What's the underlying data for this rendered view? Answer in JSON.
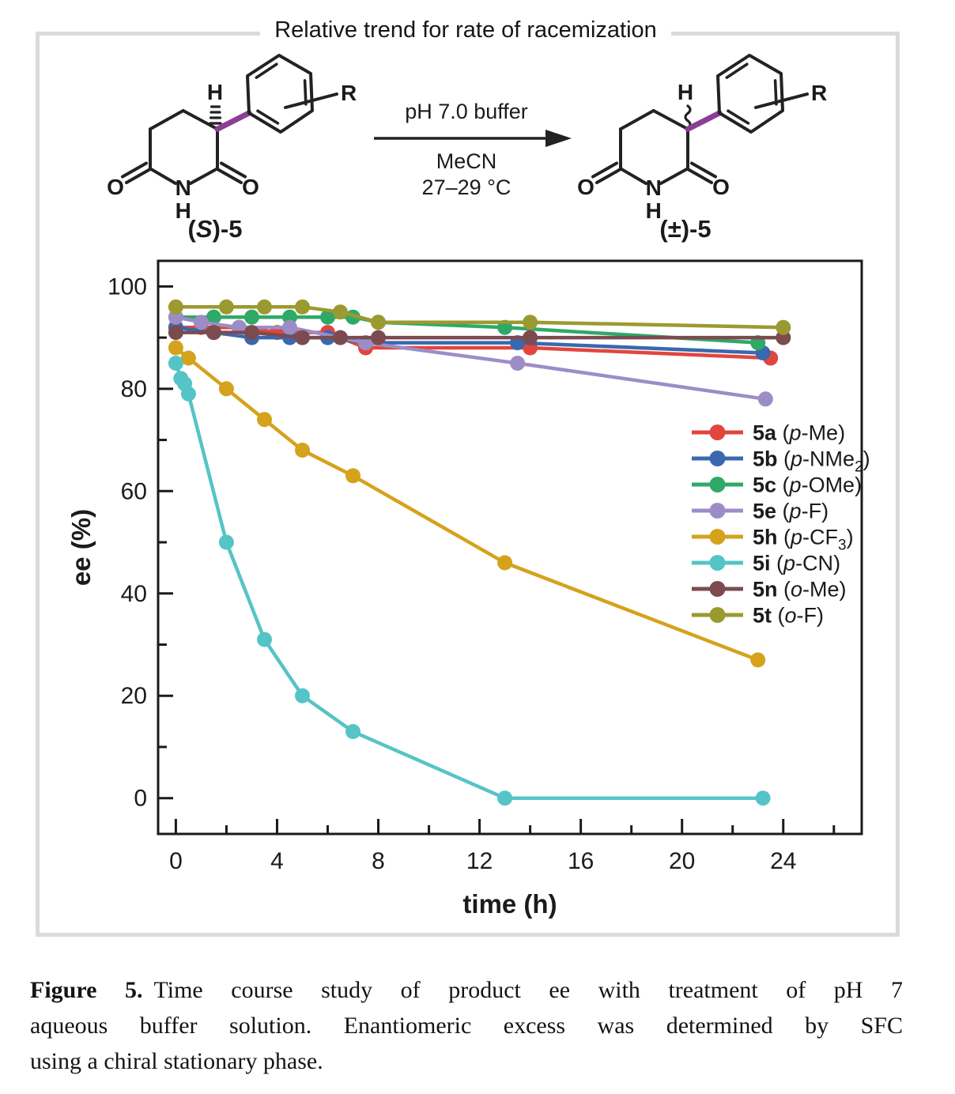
{
  "figure": {
    "title": "Relative trend for rate of racemization",
    "scheme": {
      "conditions": {
        "above_arrow": "pH 7.0 buffer",
        "below_arrow_solvent": "MeCN",
        "below_arrow_temperature": "27–29 °C"
      },
      "atoms": {
        "hydrogen": "H",
        "nitrogen": "N",
        "oxygen": "O",
        "r_group": "R"
      },
      "reactant_label": {
        "open": "(",
        "stereocenter": "S",
        "close": ")-5"
      },
      "product_label": "(±)-5",
      "stereo_bond_color": "#8c3d96"
    },
    "caption": {
      "label": "Figure 5.",
      "line1": "Time course study of product ee with treatment of pH 7",
      "line2": "aqueous buffer solution. Enantiomeric excess was determined by SFC",
      "line3": "using a chiral stationary phase."
    }
  },
  "chart_data": {
    "type": "line",
    "title": "",
    "xlabel": "time (h)",
    "ylabel": "ee (%)",
    "xlim": [
      -0.7,
      27.1
    ],
    "ylim": [
      -7,
      105
    ],
    "x_ticks": [
      0,
      4,
      8,
      12,
      16,
      20,
      24
    ],
    "x_minor_ticks": [
      2,
      6,
      10,
      14,
      18,
      22,
      26
    ],
    "y_ticks": [
      0,
      20,
      40,
      60,
      80,
      100
    ],
    "y_minor_ticks": [
      10,
      30,
      50,
      70,
      90
    ],
    "grid": false,
    "legend_position": "inside right",
    "axis_color": "#1a1a1a",
    "series": [
      {
        "name": "5a",
        "position": "p",
        "group": "Me",
        "subscript": "",
        "color": "#e2453e",
        "points": [
          [
            0,
            92
          ],
          [
            1,
            92
          ],
          [
            2.5,
            92
          ],
          [
            4,
            91
          ],
          [
            6,
            91
          ],
          [
            7.5,
            88
          ],
          [
            14,
            88
          ],
          [
            23.5,
            86
          ]
        ]
      },
      {
        "name": "5b",
        "position": "p",
        "group": "NMe",
        "subscript": "2",
        "color": "#3a68ae",
        "points": [
          [
            0,
            92
          ],
          [
            1.5,
            91
          ],
          [
            3,
            90
          ],
          [
            4.5,
            90
          ],
          [
            6,
            90
          ],
          [
            7.5,
            89
          ],
          [
            13.5,
            89
          ],
          [
            23.2,
            87
          ]
        ]
      },
      {
        "name": "5c",
        "position": "p",
        "group": "OMe",
        "subscript": "",
        "color": "#2fa968",
        "points": [
          [
            0,
            94
          ],
          [
            1.5,
            94
          ],
          [
            3,
            94
          ],
          [
            4.5,
            94
          ],
          [
            6,
            94
          ],
          [
            7,
            94
          ],
          [
            8,
            93
          ],
          [
            13,
            92
          ],
          [
            23,
            89
          ]
        ]
      },
      {
        "name": "5e",
        "position": "p",
        "group": "F",
        "subscript": "",
        "color": "#9d8dc6",
        "points": [
          [
            0,
            94
          ],
          [
            1,
            93
          ],
          [
            2.5,
            92
          ],
          [
            4.5,
            92
          ],
          [
            7.5,
            89
          ],
          [
            13.5,
            85
          ],
          [
            23.3,
            78
          ]
        ]
      },
      {
        "name": "5h",
        "position": "p",
        "group": "CF",
        "subscript": "3",
        "color": "#d5a21c",
        "points": [
          [
            0,
            88
          ],
          [
            0.5,
            86
          ],
          [
            2,
            80
          ],
          [
            3.5,
            74
          ],
          [
            5,
            68
          ],
          [
            7,
            63
          ],
          [
            13,
            46
          ],
          [
            23,
            27
          ]
        ]
      },
      {
        "name": "5i",
        "position": "p",
        "group": "CN",
        "subscript": "",
        "color": "#55c4c6",
        "points": [
          [
            0,
            85
          ],
          [
            0.2,
            82
          ],
          [
            0.35,
            81
          ],
          [
            0.5,
            79
          ],
          [
            2,
            50
          ],
          [
            3.5,
            31
          ],
          [
            5,
            20
          ],
          [
            7,
            13
          ],
          [
            13,
            0
          ],
          [
            23.2,
            0
          ]
        ]
      },
      {
        "name": "5n",
        "position": "o",
        "group": "Me",
        "subscript": "",
        "color": "#7b4b50",
        "points": [
          [
            0,
            91
          ],
          [
            1.5,
            91
          ],
          [
            3,
            91
          ],
          [
            5,
            90
          ],
          [
            6.5,
            90
          ],
          [
            8,
            90
          ],
          [
            14,
            90
          ],
          [
            24,
            90
          ]
        ]
      },
      {
        "name": "5t",
        "position": "o",
        "group": "F",
        "subscript": "",
        "color": "#9b9a30",
        "points": [
          [
            0,
            96
          ],
          [
            2,
            96
          ],
          [
            3.5,
            96
          ],
          [
            5,
            96
          ],
          [
            6.5,
            95
          ],
          [
            8,
            93
          ],
          [
            14,
            93
          ],
          [
            24,
            92
          ]
        ]
      }
    ]
  }
}
